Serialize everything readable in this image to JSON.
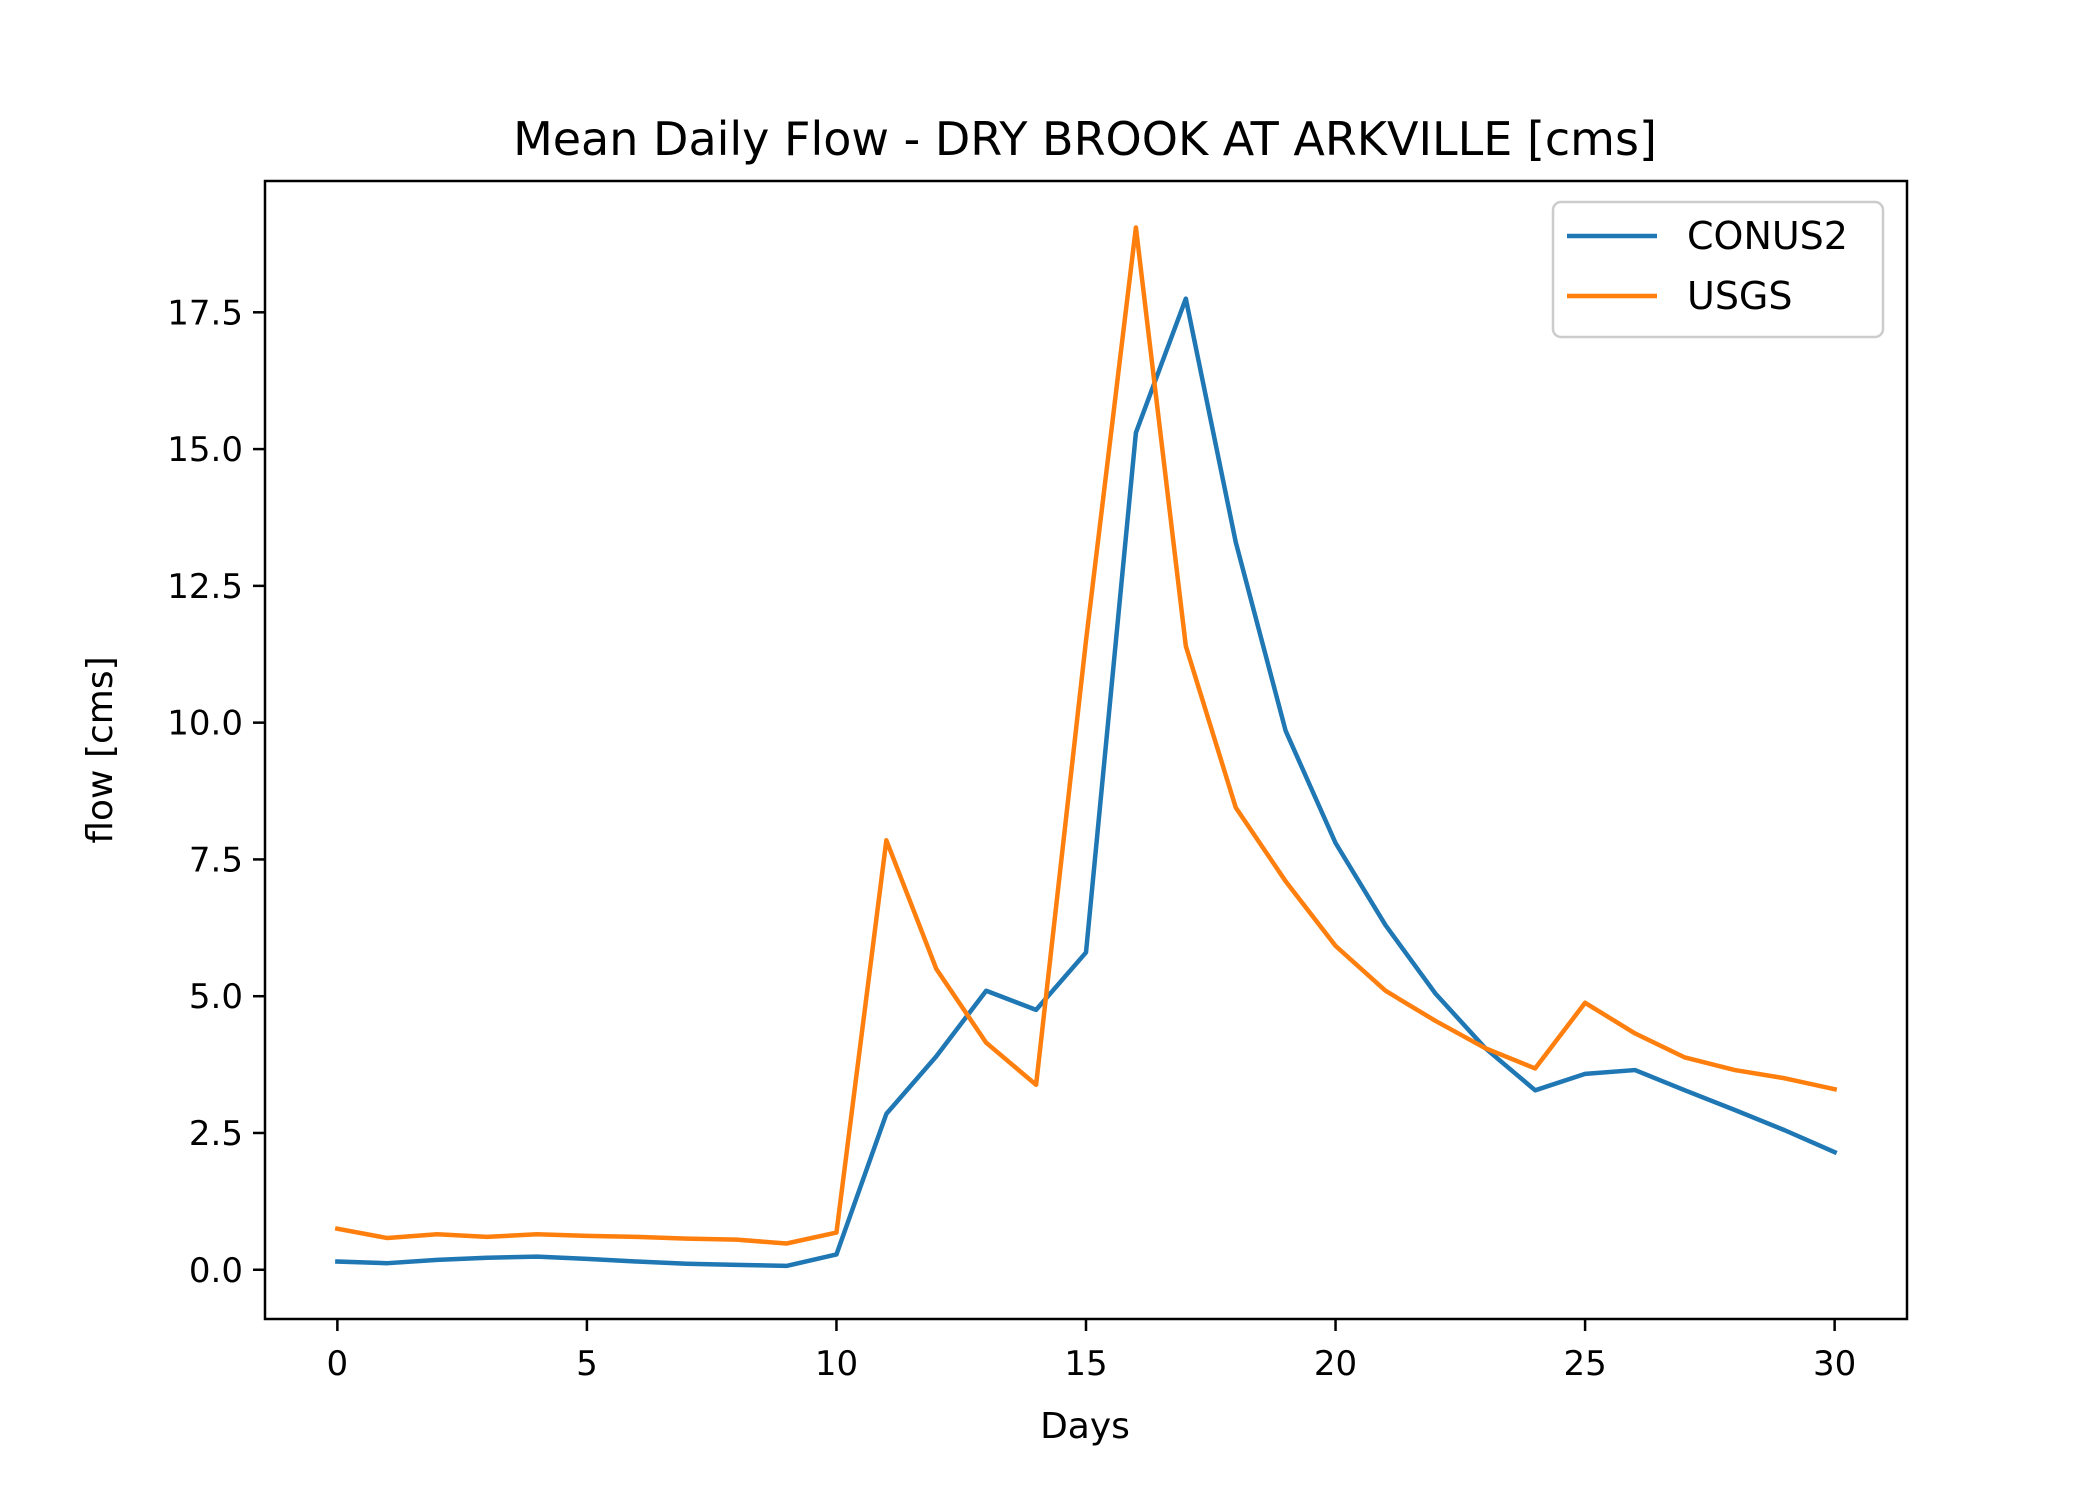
{
  "chart_data": {
    "type": "line",
    "title": "Mean Daily Flow - DRY BROOK AT ARKVILLE [cms]",
    "xlabel": "Days",
    "ylabel": "flow [cms]",
    "xlim": [
      -1.45,
      31.45
    ],
    "ylim": [
      -0.9,
      19.9
    ],
    "xticks": [
      0,
      5,
      10,
      15,
      20,
      25,
      30
    ],
    "xtick_labels": [
      "0",
      "5",
      "10",
      "15",
      "20",
      "25",
      "30"
    ],
    "yticks": [
      0,
      2.5,
      5,
      7.5,
      10,
      12.5,
      15,
      17.5
    ],
    "ytick_labels": [
      "0.0",
      "2.5",
      "5.0",
      "7.5",
      "10.0",
      "12.5",
      "15.0",
      "17.5"
    ],
    "grid": false,
    "legend_position": "upper right",
    "x": [
      0,
      1,
      2,
      3,
      4,
      5,
      6,
      7,
      8,
      9,
      10,
      11,
      12,
      13,
      14,
      15,
      16,
      17,
      18,
      19,
      20,
      21,
      22,
      23,
      24,
      25,
      26,
      27,
      28,
      29,
      30
    ],
    "series": [
      {
        "name": "CONUS2",
        "color": "#1f77b4",
        "values": [
          0.15,
          0.12,
          0.18,
          0.22,
          0.24,
          0.2,
          0.15,
          0.11,
          0.09,
          0.07,
          0.28,
          2.85,
          3.9,
          5.1,
          4.75,
          5.8,
          15.3,
          17.75,
          13.3,
          9.85,
          7.8,
          6.3,
          5.05,
          4.05,
          3.28,
          3.58,
          3.65,
          3.28,
          2.92,
          2.55,
          2.15
        ]
      },
      {
        "name": "USGS",
        "color": "#ff7f0e",
        "values": [
          0.75,
          0.58,
          0.65,
          0.6,
          0.65,
          0.62,
          0.6,
          0.57,
          0.55,
          0.48,
          0.68,
          7.85,
          5.5,
          4.15,
          3.38,
          11.5,
          19.05,
          11.4,
          8.45,
          7.1,
          5.92,
          5.1,
          4.55,
          4.05,
          3.68,
          4.88,
          4.32,
          3.88,
          3.65,
          3.5,
          3.3
        ]
      }
    ]
  }
}
